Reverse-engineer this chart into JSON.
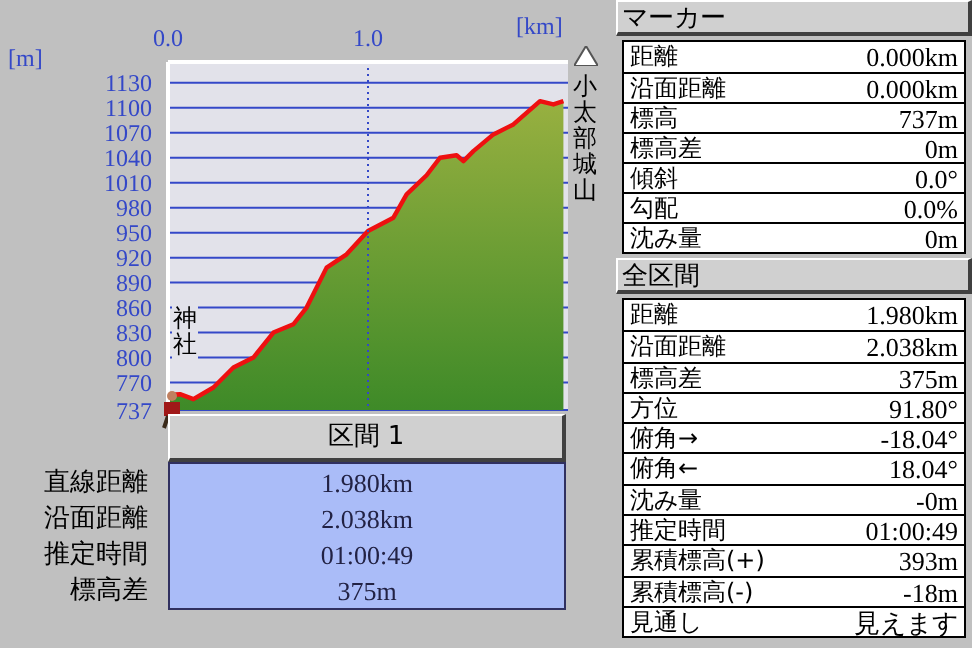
{
  "chart_data": [
    {
      "type": "area",
      "xlabel": "[km]",
      "ylabel": "[m]",
      "xlim": [
        0,
        2
      ],
      "xticks": [
        {
          "value": 0,
          "label": "0.0"
        },
        {
          "value": 1,
          "label": "1.0"
        }
      ],
      "ylim": [
        737,
        1155
      ],
      "yticks": [
        737,
        770,
        800,
        830,
        860,
        890,
        920,
        950,
        980,
        1010,
        1040,
        1070,
        1100,
        1130
      ],
      "grid": "y",
      "ref_lines": [
        {
          "axis": "x",
          "value": 1,
          "color": "#3448c8",
          "line_style": "dotted"
        }
      ],
      "annotations": [
        "神社",
        "小太部城山"
      ],
      "series": [
        {
          "color": "#ee1010",
          "x": [
            0,
            0.06,
            0.127,
            0.227,
            0.327,
            0.427,
            0.527,
            0.627,
            0.693,
            0.793,
            0.893,
            1.0,
            1.127,
            1.193,
            1.293,
            1.36,
            1.443,
            1.477,
            1.527,
            1.627,
            1.727,
            1.86,
            1.927,
            1.977
          ],
          "values": [
            755,
            756,
            750,
            764,
            788,
            800,
            830,
            840,
            860,
            908,
            924,
            952,
            968,
            996,
            1019,
            1040,
            1043,
            1036,
            1048,
            1068,
            1080,
            1108,
            1104,
            1108
          ]
        }
      ]
    },
    {
      "type": "other",
      "title": "区間 1",
      "annotations": [
        "直線距離",
        "1.980km",
        "沿面距離",
        "2.038km",
        "推定時間",
        "01:00:49",
        "標高差",
        "375m"
      ]
    },
    {
      "type": "other",
      "title": "マーカー",
      "annotations": [
        "距離",
        "0.000km",
        "沿面距離",
        "0.000km",
        "標高",
        "737m",
        "標高差",
        "0m",
        "傾斜",
        "0.0°",
        "勾配",
        "0.0%",
        "沈み量",
        "0m"
      ]
    },
    {
      "type": "other",
      "title": "全区間",
      "annotations": [
        "距離",
        "1.980km",
        "沿面距離",
        "2.038km",
        "標高差",
        "375m",
        "方位",
        "91.80°",
        "俯角→",
        "-18.04°",
        "俯角←",
        "18.04°",
        "沈み量",
        "-0m",
        "推定時間",
        "01:00:49",
        "累積標高(+)",
        "393m",
        "累積標高(-)",
        "-18m",
        "見通し",
        "見えます"
      ]
    }
  ]
}
